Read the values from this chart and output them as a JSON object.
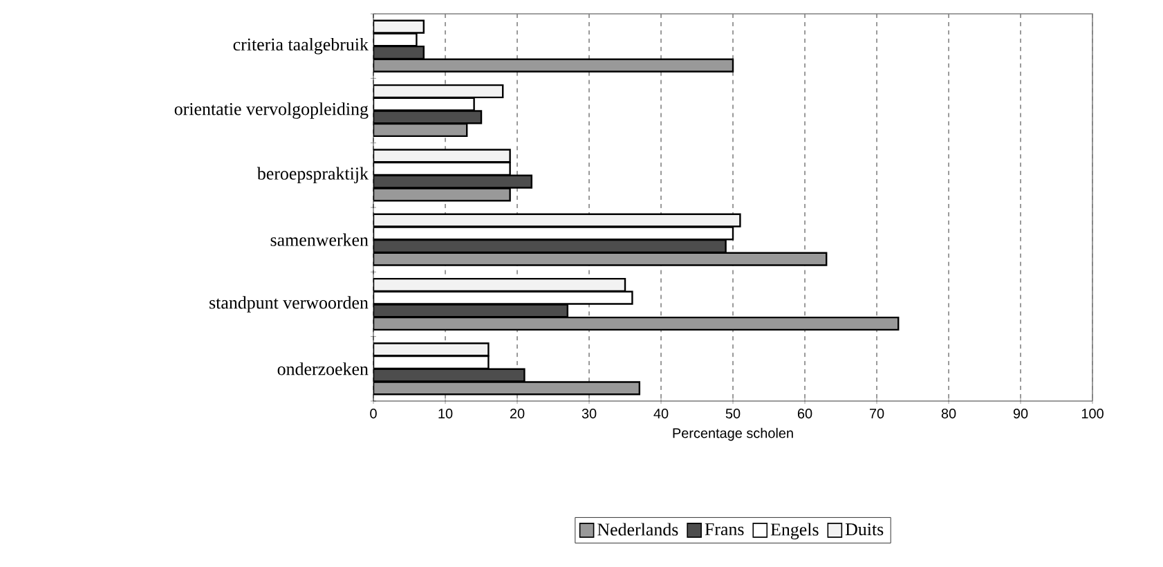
{
  "chart_data": {
    "type": "bar",
    "orientation": "horizontal",
    "xlabel": "Percentage scholen",
    "categories": [
      "criteria taalgebruik",
      "orientatie vervolgopleiding",
      "beroepspraktijk",
      "samenwerken",
      "standpunt verwoorden",
      "onderzoeken"
    ],
    "series": [
      {
        "name": "Nederlands",
        "color": "#999999",
        "values": [
          50,
          13,
          19,
          63,
          73,
          37
        ]
      },
      {
        "name": "Frans",
        "color": "#4d4d4d",
        "values": [
          7,
          15,
          22,
          49,
          27,
          21
        ]
      },
      {
        "name": "Engels",
        "color": "#ffffff",
        "values": [
          6,
          14,
          19,
          50,
          36,
          16
        ]
      },
      {
        "name": "Duits",
        "color": "#f2f2f2",
        "values": [
          7,
          18,
          19,
          51,
          35,
          16
        ]
      }
    ],
    "xlim": [
      0,
      100
    ],
    "xticks": [
      0,
      10,
      20,
      30,
      40,
      50,
      60,
      70,
      80,
      90,
      100
    ],
    "grid": "x",
    "legend": "bottom"
  }
}
